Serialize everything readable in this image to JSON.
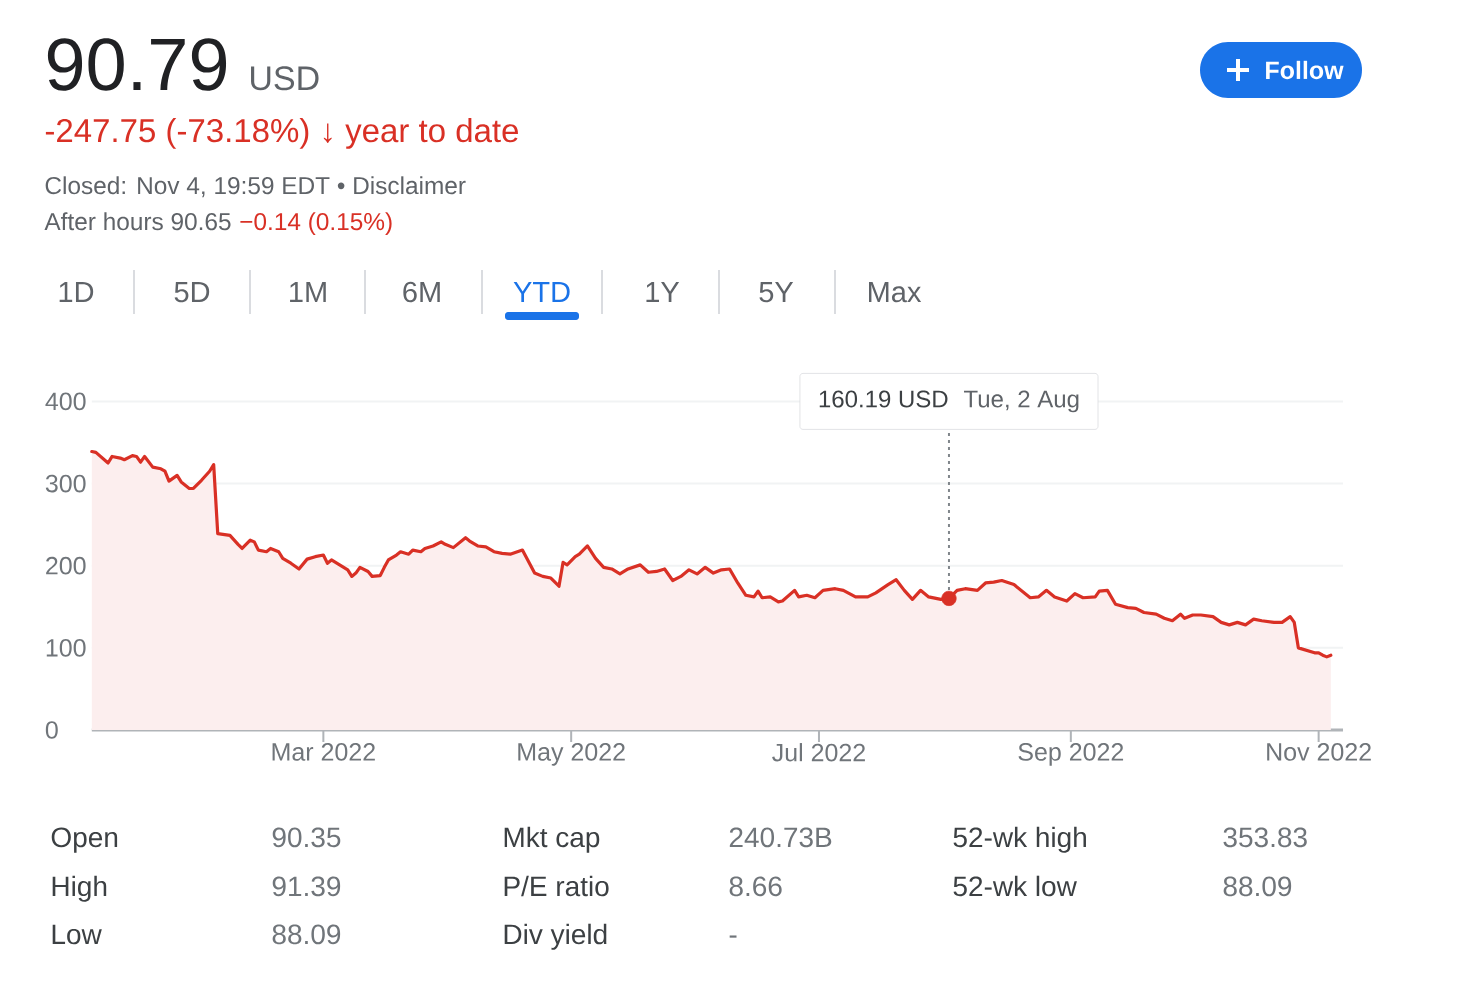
{
  "chart_data": {
    "type": "area",
    "title": "90.79",
    "subtitle": "USD",
    "annotations": [
      "-247.75 (-73.18%) ↓ year to date",
      "Closed: Nov 4, 19:59 EDT • Disclaimer",
      "After hours 90.65",
      "−0.14 (0.15%)",
      "Follow",
      "1D",
      "5D",
      "1M",
      "6M",
      "YTD",
      "1Y",
      "5Y",
      "Max",
      "160.19 USD",
      "Tue, 2 Aug",
      "Open",
      "90.35",
      "Mkt cap",
      "240.73B",
      "52-wk high",
      "353.83",
      "High",
      "91.39",
      "P/E ratio",
      "8.66",
      "52-wk low",
      "88.09",
      "Low",
      "88.09",
      "Div yield",
      "-"
    ],
    "x": [
      "2022-01-03",
      "2022-01-04",
      "2022-01-07",
      "2022-01-08",
      "2022-01-10",
      "2022-01-11",
      "2022-01-13",
      "2022-01-14",
      "2022-01-15",
      "2022-01-16",
      "2022-01-18",
      "2022-01-20",
      "2022-01-21",
      "2022-01-22",
      "2022-01-24",
      "2022-01-25",
      "2022-01-27",
      "2022-01-28",
      "2022-01-30",
      "2022-02-01",
      "2022-02-02",
      "2022-02-03",
      "2022-02-06",
      "2022-02-08",
      "2022-02-09",
      "2022-02-11",
      "2022-02-12",
      "2022-02-13",
      "2022-02-15",
      "2022-02-16",
      "2022-02-18",
      "2022-02-19",
      "2022-02-21",
      "2022-02-23",
      "2022-02-25",
      "2022-02-27",
      "2022-03-01",
      "2022-03-02",
      "2022-03-03",
      "2022-03-05",
      "2022-03-07",
      "2022-03-08",
      "2022-03-09",
      "2022-03-10",
      "2022-03-12",
      "2022-03-13",
      "2022-03-15",
      "2022-03-16",
      "2022-03-17",
      "2022-03-19",
      "2022-03-20",
      "2022-03-22",
      "2022-03-23",
      "2022-03-25",
      "2022-03-26",
      "2022-03-28",
      "2022-03-30",
      "2022-03-31",
      "2022-04-02",
      "2022-04-05",
      "2022-04-06",
      "2022-04-08",
      "2022-04-10",
      "2022-04-12",
      "2022-04-14",
      "2022-04-16",
      "2022-04-19",
      "2022-04-22",
      "2022-04-24",
      "2022-04-26",
      "2022-04-28",
      "2022-04-29",
      "2022-04-30",
      "2022-05-02",
      "2022-05-03",
      "2022-05-05",
      "2022-05-07",
      "2022-05-09",
      "2022-05-11",
      "2022-05-13",
      "2022-05-15",
      "2022-05-18",
      "2022-05-20",
      "2022-05-22",
      "2022-05-24",
      "2022-05-26",
      "2022-05-28",
      "2022-05-30",
      "2022-06-01",
      "2022-06-03",
      "2022-06-05",
      "2022-06-07",
      "2022-06-09",
      "2022-06-11",
      "2022-06-13",
      "2022-06-15",
      "2022-06-16",
      "2022-06-17",
      "2022-06-19",
      "2022-06-21",
      "2022-06-22",
      "2022-06-25",
      "2022-06-26",
      "2022-06-28",
      "2022-06-30",
      "2022-07-02",
      "2022-07-05",
      "2022-07-07",
      "2022-07-10",
      "2022-07-13",
      "2022-07-15",
      "2022-07-18",
      "2022-07-20",
      "2022-07-22",
      "2022-07-24",
      "2022-07-26",
      "2022-07-28",
      "2022-07-31",
      "2022-08-02",
      "2022-08-04",
      "2022-08-06",
      "2022-08-09",
      "2022-08-11",
      "2022-08-13",
      "2022-08-15",
      "2022-08-18",
      "2022-08-20",
      "2022-08-22",
      "2022-08-24",
      "2022-08-26",
      "2022-08-28",
      "2022-08-31",
      "2022-09-02",
      "2022-09-04",
      "2022-09-07",
      "2022-09-08",
      "2022-09-10",
      "2022-09-12",
      "2022-09-15",
      "2022-09-17",
      "2022-09-19",
      "2022-09-22",
      "2022-09-24",
      "2022-09-26",
      "2022-09-28",
      "2022-09-29",
      "2022-10-01",
      "2022-10-03",
      "2022-10-06",
      "2022-10-08",
      "2022-10-10",
      "2022-10-12",
      "2022-10-14",
      "2022-10-16",
      "2022-10-18",
      "2022-10-21",
      "2022-10-23",
      "2022-10-25",
      "2022-10-26",
      "2022-10-27",
      "2022-10-29",
      "2022-10-31",
      "2022-11-01",
      "2022-11-02",
      "2022-11-03",
      "2022-11-04"
    ],
    "series": [
      {
        "color": "#d93025",
        "values": [
          339,
          338,
          325,
          333,
          331,
          329,
          334,
          333,
          326,
          333,
          320,
          318,
          315,
          303,
          310,
          302,
          294,
          294,
          304,
          315,
          323,
          239,
          237,
          226,
          221,
          231,
          229,
          219,
          217,
          221,
          217,
          209,
          203,
          196,
          208,
          211,
          213,
          203,
          207,
          201,
          195,
          187,
          191,
          198,
          193,
          187,
          188,
          198,
          207,
          213,
          217,
          214,
          219,
          217,
          221,
          224,
          229,
          226,
          222,
          234,
          230,
          224,
          223,
          217,
          215,
          214,
          219,
          191,
          187,
          185,
          175,
          204,
          201,
          211,
          214,
          224,
          209,
          198,
          196,
          190,
          196,
          201,
          192,
          193,
          196,
          182,
          187,
          195,
          190,
          198,
          191,
          195,
          196,
          179,
          164,
          162,
          169,
          161,
          162,
          156,
          157,
          170,
          162,
          164,
          161,
          170,
          172,
          170,
          162,
          162,
          167,
          177,
          183,
          170,
          159,
          170,
          162,
          159,
          160.19,
          170,
          172,
          170,
          179,
          180,
          182,
          177,
          169,
          161,
          162,
          170,
          162,
          157,
          166,
          161,
          162,
          169,
          170,
          153,
          149,
          148,
          143,
          141,
          136,
          133,
          141,
          136,
          140,
          140,
          138,
          131,
          128,
          131,
          128,
          135,
          133,
          131,
          131,
          138,
          131,
          100,
          97,
          94,
          94,
          91,
          89,
          91
        ]
      },
      {
        "type": "scatter",
        "x": [
          "2022-08-02"
        ],
        "values": [
          160.19
        ],
        "color": "#d93025",
        "marker": "circle"
      }
    ],
    "xlim": [
      "2022-01-03",
      "2022-11-07"
    ],
    "ylim": [
      0,
      400
    ],
    "xticks": [
      {
        "value": "2022-03-01",
        "label": "Mar 2022"
      },
      {
        "value": "2022-05-01",
        "label": "May 2022"
      },
      {
        "value": "2022-07-01",
        "label": "Jul 2022"
      },
      {
        "value": "2022-09-01",
        "label": "Sep 2022"
      },
      {
        "value": "2022-11-01",
        "label": "Nov 2022"
      }
    ],
    "yticks": [
      0,
      100,
      200,
      300,
      400
    ],
    "grid": "y",
    "ref_lines": [
      {
        "axis": "x",
        "value": "2022-08-02",
        "color": "#80868b",
        "line_style": "dotted"
      }
    ]
  }
}
